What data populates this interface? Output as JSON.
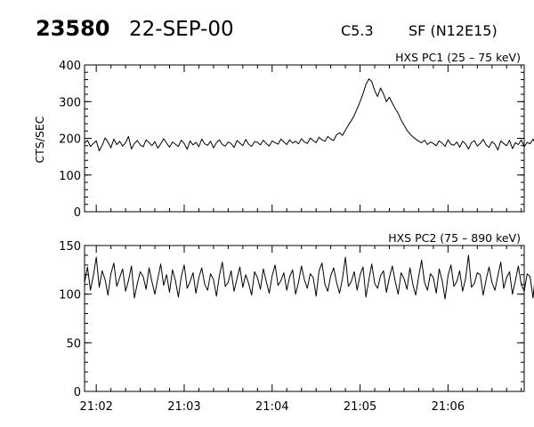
{
  "header": {
    "event_number": "23580",
    "date": "22-SEP-00",
    "goes_class": "C5.3",
    "flare_info": "SF (N12E15)"
  },
  "chart_data": [
    {
      "type": "line",
      "title": "HXS PC1 (25 – 75 keV)",
      "ylabel": "CTS/SEC",
      "xlabel": "",
      "xlim": [
        "21:01:52",
        "21:06:52"
      ],
      "ylim": [
        0,
        400
      ],
      "yticks": [
        0,
        100,
        200,
        300,
        400
      ],
      "xticks": [
        "21:02",
        "21:03",
        "21:04",
        "21:05",
        "21:06"
      ],
      "show_xtick_labels": false,
      "grid": false,
      "series": [
        {
          "x_start": "21:01:52",
          "x_step_seconds": 2,
          "values": [
            187,
            195,
            178,
            186,
            193,
            166,
            181,
            201,
            190,
            174,
            198,
            183,
            192,
            179,
            188,
            205,
            171,
            186,
            194,
            182,
            177,
            196,
            188,
            180,
            191,
            173,
            185,
            199,
            187,
            176,
            190,
            184,
            178,
            195,
            186,
            170,
            193,
            182,
            189,
            177,
            198,
            185,
            181,
            192,
            174,
            188,
            196,
            183,
            179,
            190,
            186,
            175,
            194,
            187,
            180,
            197,
            184,
            178,
            191,
            189,
            182,
            195,
            186,
            179,
            193,
            188,
            184,
            198,
            190,
            183,
            196,
            187,
            192,
            185,
            199,
            190,
            186,
            201,
            194,
            188,
            203,
            196,
            192,
            205,
            198,
            194,
            210,
            215,
            208,
            222,
            236,
            248,
            262,
            281,
            300,
            322,
            347,
            362,
            355,
            330,
            314,
            337,
            321,
            300,
            312,
            296,
            281,
            268,
            250,
            236,
            222,
            212,
            204,
            198,
            192,
            188,
            195,
            183,
            190,
            186,
            180,
            193,
            187,
            178,
            196,
            184,
            181,
            190,
            176,
            192,
            185,
            171,
            188,
            194,
            179,
            186,
            197,
            182,
            175,
            191,
            184,
            168,
            193,
            186,
            180,
            195,
            172,
            188,
            183,
            196,
            177,
            189,
            185,
            198,
            181,
            174,
            192,
            187,
            179,
            205,
            183,
            170,
            191,
            186,
            194,
            178,
            200,
            185,
            176,
            192,
            188,
            172,
            196,
            184,
            190,
            182,
            207,
            179,
            187,
            195,
            174,
            191,
            186,
            199,
            183,
            177,
            193,
            188,
            166,
            190,
            197,
            180,
            186,
            194,
            178,
            201,
            185,
            172,
            193,
            188,
            181
          ]
        }
      ]
    },
    {
      "type": "line",
      "title": "HXS PC2 (75 – 890 keV)",
      "ylabel": "",
      "xlabel": "",
      "xlim": [
        "21:01:52",
        "21:06:52"
      ],
      "ylim": [
        0,
        150
      ],
      "yticks": [
        0,
        50,
        100,
        150
      ],
      "xticks": [
        "21:02",
        "21:03",
        "21:04",
        "21:05",
        "21:06"
      ],
      "show_xtick_labels": true,
      "grid": false,
      "series": [
        {
          "x_start": "21:01:52",
          "x_step_seconds": 2,
          "values": [
            112,
            128,
            104,
            119,
            138,
            107,
            124,
            115,
            99,
            121,
            132,
            108,
            117,
            126,
            103,
            114,
            129,
            96,
            111,
            123,
            118,
            105,
            127,
            113,
            100,
            116,
            131,
            109,
            120,
            102,
            125,
            114,
            97,
            118,
            130,
            106,
            113,
            122,
            101,
            117,
            127,
            110,
            104,
            121,
            115,
            98,
            119,
            133,
            108,
            112,
            124,
            103,
            116,
            128,
            107,
            120,
            111,
            99,
            123,
            117,
            105,
            126,
            113,
            101,
            119,
            130,
            109,
            114,
            122,
            104,
            118,
            125,
            100,
            112,
            129,
            115,
            106,
            121,
            117,
            98,
            124,
            132,
            110,
            103,
            119,
            127,
            112,
            101,
            116,
            138,
            108,
            113,
            123,
            104,
            120,
            128,
            97,
            115,
            131,
            111,
            106,
            119,
            124,
            102,
            117,
            129,
            113,
            100,
            122,
            116,
            105,
            127,
            110,
            99,
            118,
            135,
            112,
            104,
            121,
            117,
            101,
            126,
            114,
            95,
            119,
            130,
            108,
            113,
            124,
            103,
            116,
            140,
            107,
            111,
            122,
            120,
            99,
            115,
            128,
            112,
            104,
            119,
            133,
            106,
            117,
            123,
            100,
            114,
            129,
            110,
            103,
            121,
            118,
            96,
            125,
            113,
            107,
            120,
            131,
            109,
            102,
            117,
            124,
            88,
            115,
            127,
            111,
            105,
            121,
            118,
            99,
            113,
            129,
            108,
            116,
            122,
            101,
            119,
            126,
            110,
            104,
            115,
            132,
            97,
            120,
            112,
            106,
            123,
            117,
            102,
            128,
            114,
            109,
            118,
            125,
            100,
            113,
            121,
            107,
            116
          ]
        }
      ]
    }
  ]
}
